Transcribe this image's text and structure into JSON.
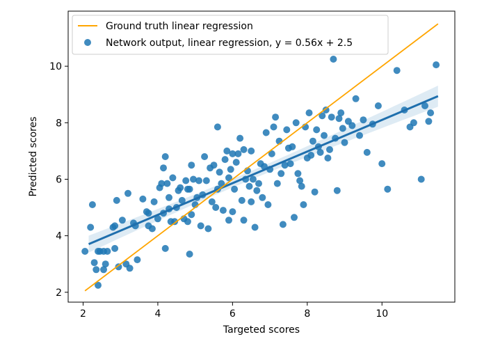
{
  "chart_data": {
    "type": "scatter",
    "xlabel": "Targeted scores",
    "ylabel": "Predicted scores",
    "xlim": [
      1.6,
      11.95
    ],
    "ylim": [
      1.65,
      11.95
    ],
    "xticks": [
      2,
      4,
      6,
      8,
      10
    ],
    "yticks": [
      2,
      4,
      6,
      8,
      10
    ],
    "grid": false,
    "legend_position": "top-left",
    "series": [
      {
        "name": "Ground truth linear regression",
        "kind": "line",
        "color": "#ffa500",
        "x": [
          2.05,
          11.5
        ],
        "y": [
          2.05,
          11.5
        ]
      },
      {
        "name": "Network output, linear regression, y = 0.56x + 2.5",
        "kind": "scatter",
        "color": "#1f77b4",
        "fit_line": {
          "slope": 0.56,
          "intercept": 2.5,
          "x_range": [
            2.15,
            11.5
          ],
          "color": "#1f6fad"
        },
        "points": [
          [
            2.05,
            3.45
          ],
          [
            2.2,
            4.3
          ],
          [
            2.25,
            5.1
          ],
          [
            2.3,
            3.05
          ],
          [
            2.35,
            2.8
          ],
          [
            2.4,
            3.45
          ],
          [
            2.45,
            3.45
          ],
          [
            2.4,
            2.25
          ],
          [
            2.55,
            3.45
          ],
          [
            2.55,
            2.8
          ],
          [
            2.6,
            3.0
          ],
          [
            2.65,
            3.45
          ],
          [
            2.8,
            4.3
          ],
          [
            2.85,
            4.35
          ],
          [
            2.85,
            3.55
          ],
          [
            2.9,
            5.25
          ],
          [
            2.95,
            2.9
          ],
          [
            3.05,
            4.55
          ],
          [
            3.15,
            3.0
          ],
          [
            3.2,
            5.5
          ],
          [
            3.25,
            2.85
          ],
          [
            3.35,
            4.45
          ],
          [
            3.4,
            4.35
          ],
          [
            3.45,
            3.15
          ],
          [
            3.6,
            5.3
          ],
          [
            3.7,
            4.85
          ],
          [
            3.75,
            4.8
          ],
          [
            3.75,
            4.35
          ],
          [
            3.85,
            4.25
          ],
          [
            3.9,
            5.2
          ],
          [
            4.0,
            4.6
          ],
          [
            4.05,
            5.7
          ],
          [
            4.1,
            5.85
          ],
          [
            4.15,
            6.4
          ],
          [
            4.15,
            4.8
          ],
          [
            4.2,
            3.55
          ],
          [
            4.2,
            6.8
          ],
          [
            4.25,
            5.85
          ],
          [
            4.3,
            5.35
          ],
          [
            4.3,
            4.95
          ],
          [
            4.35,
            4.5
          ],
          [
            4.4,
            6.05
          ],
          [
            4.45,
            4.5
          ],
          [
            4.5,
            5.0
          ],
          [
            4.55,
            5.6
          ],
          [
            4.6,
            5.7
          ],
          [
            4.65,
            5.25
          ],
          [
            4.7,
            4.6
          ],
          [
            4.75,
            5.95
          ],
          [
            4.8,
            5.65
          ],
          [
            4.8,
            4.5
          ],
          [
            4.85,
            5.65
          ],
          [
            4.85,
            3.35
          ],
          [
            4.9,
            6.5
          ],
          [
            4.9,
            4.75
          ],
          [
            4.95,
            6.0
          ],
          [
            5.0,
            5.1
          ],
          [
            5.05,
            5.35
          ],
          [
            5.1,
            5.95
          ],
          [
            5.15,
            4.35
          ],
          [
            5.2,
            5.45
          ],
          [
            5.25,
            6.8
          ],
          [
            5.3,
            5.95
          ],
          [
            5.35,
            4.25
          ],
          [
            5.4,
            6.4
          ],
          [
            5.45,
            5.2
          ],
          [
            5.5,
            6.5
          ],
          [
            5.55,
            5.0
          ],
          [
            5.6,
            7.85
          ],
          [
            5.6,
            5.65
          ],
          [
            5.65,
            6.25
          ],
          [
            5.7,
            5.85
          ],
          [
            5.75,
            4.9
          ],
          [
            5.8,
            6.7
          ],
          [
            5.85,
            7.0
          ],
          [
            5.9,
            6.05
          ],
          [
            5.9,
            4.55
          ],
          [
            5.95,
            6.35
          ],
          [
            6.0,
            4.85
          ],
          [
            6.0,
            6.9
          ],
          [
            6.05,
            5.65
          ],
          [
            6.1,
            6.6
          ],
          [
            6.15,
            6.9
          ],
          [
            6.2,
            7.45
          ],
          [
            6.25,
            5.25
          ],
          [
            6.3,
            7.05
          ],
          [
            6.3,
            4.55
          ],
          [
            6.35,
            6.0
          ],
          [
            6.4,
            6.3
          ],
          [
            6.45,
            5.75
          ],
          [
            6.5,
            7.0
          ],
          [
            6.5,
            5.2
          ],
          [
            6.55,
            6.0
          ],
          [
            6.6,
            4.3
          ],
          [
            6.65,
            5.6
          ],
          [
            6.7,
            5.85
          ],
          [
            6.75,
            6.55
          ],
          [
            6.8,
            5.35
          ],
          [
            6.85,
            6.45
          ],
          [
            6.9,
            7.65
          ],
          [
            6.95,
            5.1
          ],
          [
            7.0,
            6.35
          ],
          [
            7.05,
            6.9
          ],
          [
            7.1,
            7.85
          ],
          [
            7.15,
            8.2
          ],
          [
            7.2,
            5.85
          ],
          [
            7.25,
            7.35
          ],
          [
            7.3,
            6.2
          ],
          [
            7.35,
            4.4
          ],
          [
            7.4,
            6.5
          ],
          [
            7.45,
            7.75
          ],
          [
            7.5,
            7.1
          ],
          [
            7.55,
            6.55
          ],
          [
            7.6,
            7.15
          ],
          [
            7.65,
            4.65
          ],
          [
            7.7,
            8.0
          ],
          [
            7.75,
            6.2
          ],
          [
            7.8,
            5.95
          ],
          [
            7.85,
            5.75
          ],
          [
            7.9,
            5.1
          ],
          [
            7.95,
            7.85
          ],
          [
            8.0,
            6.75
          ],
          [
            8.05,
            8.35
          ],
          [
            8.1,
            6.85
          ],
          [
            8.15,
            7.35
          ],
          [
            8.2,
            5.55
          ],
          [
            8.25,
            7.75
          ],
          [
            8.3,
            7.15
          ],
          [
            8.35,
            6.95
          ],
          [
            8.4,
            8.25
          ],
          [
            8.45,
            7.55
          ],
          [
            8.5,
            8.45
          ],
          [
            8.55,
            6.75
          ],
          [
            8.6,
            7.05
          ],
          [
            8.65,
            8.2
          ],
          [
            8.7,
            10.25
          ],
          [
            8.75,
            7.45
          ],
          [
            8.8,
            5.6
          ],
          [
            8.85,
            8.15
          ],
          [
            8.9,
            8.35
          ],
          [
            8.95,
            7.8
          ],
          [
            9.0,
            7.3
          ],
          [
            9.1,
            8.05
          ],
          [
            9.2,
            7.9
          ],
          [
            9.3,
            8.85
          ],
          [
            9.4,
            7.55
          ],
          [
            9.5,
            8.1
          ],
          [
            9.6,
            6.95
          ],
          [
            9.75,
            7.95
          ],
          [
            9.9,
            8.6
          ],
          [
            10.0,
            6.55
          ],
          [
            10.15,
            5.65
          ],
          [
            10.4,
            9.85
          ],
          [
            10.6,
            8.45
          ],
          [
            10.75,
            7.85
          ],
          [
            10.85,
            8.0
          ],
          [
            11.05,
            6.0
          ],
          [
            11.15,
            8.6
          ],
          [
            11.25,
            8.05
          ],
          [
            11.3,
            8.35
          ],
          [
            11.45,
            10.05
          ]
        ]
      }
    ]
  }
}
